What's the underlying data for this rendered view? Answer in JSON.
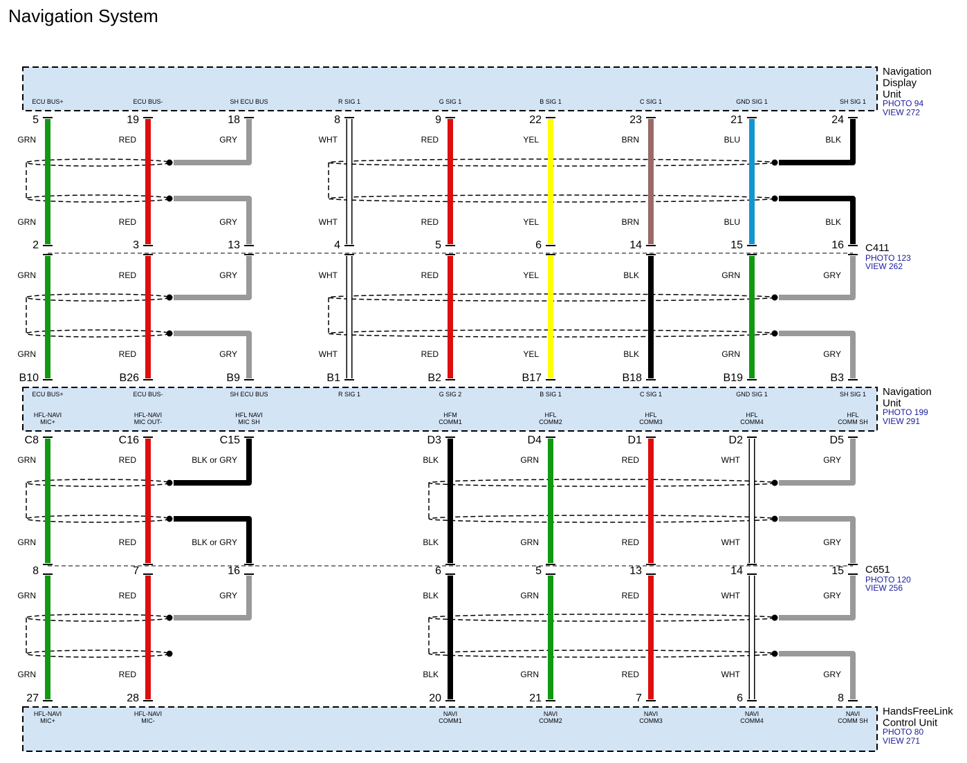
{
  "title": "Navigation System",
  "colors": {
    "GRN": "#119911",
    "RED": "#dd0e0e",
    "GRY": "#999999",
    "WHT": "#ffffff",
    "YEL": "#ffff00",
    "BRN": "#9b6a66",
    "BLU": "#1196d1",
    "BLK": "#000000",
    "BLK or GRY": "#000000",
    "box_fill": "#d3e4f5"
  },
  "units": [
    {
      "name": [
        "Navigation",
        "Display",
        "Unit"
      ],
      "photo": "PHOTO 94",
      "view": "VIEW 272",
      "terminals": [
        [
          "ECU BUS+"
        ],
        [
          "ECU BUS-"
        ],
        [
          "SH ECU BUS"
        ],
        [
          "R SIG 1"
        ],
        [
          "G SIG 1"
        ],
        [
          "B SIG 1"
        ],
        [
          "C SIG 1"
        ],
        [
          "GND SIG 1"
        ],
        [
          "SH SIG 1"
        ]
      ]
    },
    {
      "name": [
        "Navigation",
        "Unit"
      ],
      "photo": "PHOTO 199",
      "view": "VIEW 291",
      "terminals": [
        [
          "ECU BUS+"
        ],
        [
          "ECU BUS-"
        ],
        [
          "SH ECU BUS"
        ],
        [
          "R SIG 1"
        ],
        [
          "G SIG 2"
        ],
        [
          "B SIG 1"
        ],
        [
          "C SIG 1"
        ],
        [
          "GND SIG 1"
        ],
        [
          "SH SIG 1"
        ]
      ],
      "terminals2": [
        [
          "HFL-NAVI",
          "MIC+"
        ],
        [
          "HFL-NAVI",
          "MIC OUT-"
        ],
        [
          "HFL NAVI",
          "MIC SH"
        ],
        [],
        [
          "HFM",
          "COMM1"
        ],
        [
          "HFL",
          "COMM2"
        ],
        [
          "HFL",
          "COMM3"
        ],
        [
          "HFL",
          "COMM4"
        ],
        [
          "HFL",
          "COMM SH"
        ]
      ]
    },
    {
      "name": [
        "HandsFreeLink",
        "Control Unit"
      ],
      "photo": "PHOTO 80",
      "view": "VIEW 271",
      "terminals": [
        [
          "HFL-NAVI",
          "MIC+"
        ],
        [
          "HFL-NAVI",
          "MIC-"
        ],
        [],
        [],
        [
          "NAVI",
          "COMM1"
        ],
        [
          "NAVI",
          "COMM2"
        ],
        [
          "NAVI",
          "COMM3"
        ],
        [
          "NAVI",
          "COMM4"
        ],
        [
          "NAVI",
          "COMM SH"
        ]
      ]
    }
  ],
  "connectors": [
    {
      "name": "C411",
      "photo": "PHOTO 123",
      "view": "VIEW 262"
    },
    {
      "name": "C651",
      "photo": "PHOTO 120",
      "view": "VIEW 256"
    }
  ],
  "pin_rows": [
    [
      "5",
      "19",
      "18",
      "8",
      "9",
      "22",
      "23",
      "21",
      "24"
    ],
    [
      "2",
      "3",
      "13",
      "4",
      "5",
      "6",
      "14",
      "15",
      "16"
    ],
    [
      "B10",
      "B26",
      "B9",
      "B1",
      "B2",
      "B17",
      "B18",
      "B19",
      "B3"
    ],
    [
      "C8",
      "C16",
      "C15",
      null,
      "D3",
      "D4",
      "D1",
      "D2",
      "D5"
    ],
    [
      "8",
      "7",
      "16",
      null,
      "6",
      "5",
      "13",
      "14",
      "15"
    ],
    [
      "27",
      "28",
      null,
      null,
      "20",
      "21",
      "7",
      "6",
      "8"
    ]
  ],
  "sections": [
    {
      "top": [
        "GRN",
        "RED",
        "GRY",
        "WHT",
        "RED",
        "YEL",
        "BRN",
        "BLU",
        "BLK"
      ],
      "bottom": [
        "GRN",
        "RED",
        "GRY",
        "WHT",
        "RED",
        "YEL",
        "BRN",
        "BLU",
        "BLK"
      ]
    },
    {
      "top": [
        "GRN",
        "RED",
        "GRY",
        "WHT",
        "RED",
        "YEL",
        "BLK",
        "GRN",
        "GRY"
      ],
      "bottom": [
        "GRN",
        "RED",
        "GRY",
        "WHT",
        "RED",
        "YEL",
        "BLK",
        "GRN",
        "GRY"
      ]
    },
    {
      "top": [
        "GRN",
        "RED",
        "BLK or GRY",
        null,
        "BLK",
        "GRN",
        "RED",
        "WHT",
        "GRY"
      ],
      "bottom": [
        "GRN",
        "RED",
        "BLK or GRY",
        null,
        "BLK",
        "GRN",
        "RED",
        "WHT",
        "GRY"
      ]
    },
    {
      "top": [
        "GRN",
        "RED",
        "GRY",
        null,
        "BLK",
        "GRN",
        "RED",
        "WHT",
        "GRY"
      ],
      "bottom": [
        "GRN",
        "RED",
        null,
        null,
        "BLK",
        "GRN",
        "RED",
        "WHT",
        "GRY"
      ]
    }
  ]
}
